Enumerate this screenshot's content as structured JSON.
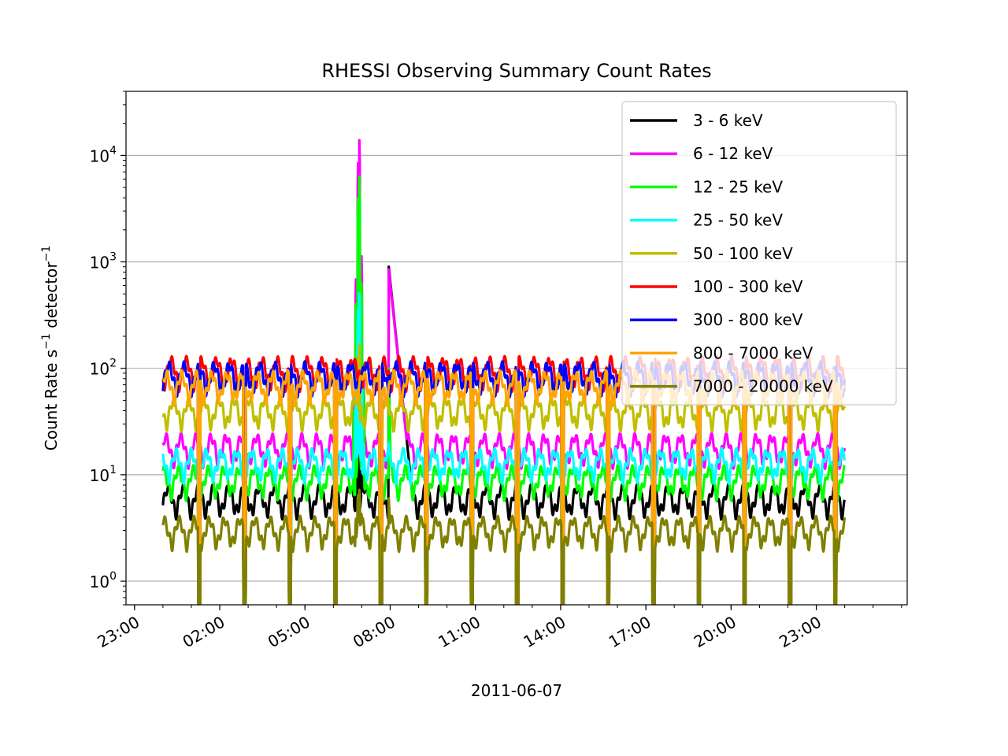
{
  "chart_data": {
    "type": "line",
    "title": "RHESSI Observing Summary Count Rates",
    "xlabel": "2011-06-07",
    "ylabel": "Count Rate s⁻¹ detector⁻¹",
    "ylabel_parts": {
      "pre": "Count Rate s",
      "sup1": "−1",
      "mid": " detector",
      "sup2": "−1"
    },
    "y_scale": "log",
    "ylim": [
      0.6,
      40000
    ],
    "xlim_hours": [
      -1.3,
      26.2
    ],
    "x_ticks": [
      {
        "label": "23:00",
        "hour": -1
      },
      {
        "label": "02:00",
        "hour": 2
      },
      {
        "label": "05:00",
        "hour": 5
      },
      {
        "label": "08:00",
        "hour": 8
      },
      {
        "label": "11:00",
        "hour": 11
      },
      {
        "label": "14:00",
        "hour": 14
      },
      {
        "label": "17:00",
        "hour": 17
      },
      {
        "label": "20:00",
        "hour": 20
      },
      {
        "label": "23:00",
        "hour": 23
      }
    ],
    "y_ticks": [
      {
        "base": "10",
        "exp": "0",
        "value": 1
      },
      {
        "base": "10",
        "exp": "1",
        "value": 10
      },
      {
        "base": "10",
        "exp": "2",
        "value": 100
      },
      {
        "base": "10",
        "exp": "3",
        "value": 1000
      },
      {
        "base": "10",
        "exp": "4",
        "value": 10000
      }
    ],
    "grid": "y-major",
    "legend_position": "top-right",
    "data_range_hours": [
      0.0,
      24.0
    ],
    "orbit_period_hours": 1.6,
    "saa_windows_hours": [
      [
        6.6,
        7.2
      ],
      [
        7.9,
        8.0
      ]
    ],
    "series": [
      {
        "name": "3 - 6 keV",
        "color": "#000000",
        "base": 6,
        "flare1": {
          "start_hour": 6.6,
          "peak": 150,
          "end_hour": 7.2
        },
        "flare2": {
          "start_hour": 7.95,
          "peak": 900,
          "end_hour": 9.1
        }
      },
      {
        "name": "6 - 12 keV",
        "color": "#ff00ff",
        "base": 18,
        "flare1": {
          "start_hour": 6.6,
          "peak": 23000,
          "end_hour": 7.2
        },
        "flare2": {
          "start_hour": 7.95,
          "peak": 850,
          "end_hour": 9.1
        }
      },
      {
        "name": "12 - 25 keV",
        "color": "#00ff00",
        "base": 9,
        "flare1": {
          "start_hour": 6.6,
          "peak": 10000,
          "end_hour": 7.2
        },
        "flare2": {
          "start_hour": 7.95,
          "peak": 100,
          "end_hour": 8.1
        }
      },
      {
        "name": "25 - 50 keV",
        "color": "#00ffff",
        "base": 13,
        "flare1": {
          "start_hour": 6.6,
          "peak": 700,
          "end_hour": 7.2
        },
        "flare2": {
          "start_hour": 7.95,
          "peak": 20,
          "end_hour": 8.1
        }
      },
      {
        "name": "50 - 100 keV",
        "color": "#bfbf00",
        "base": 40,
        "flare1": {
          "start_hour": 6.6,
          "peak": 220,
          "end_hour": 7.2
        },
        "flare2": {
          "start_hour": 7.95,
          "peak": 45,
          "end_hour": 8.1
        }
      },
      {
        "name": "100 - 300 keV",
        "color": "#ff0000",
        "base": 95,
        "flare1": {
          "start_hour": 6.6,
          "peak": 120,
          "end_hour": 7.2
        },
        "flare2": {
          "start_hour": 7.95,
          "peak": 95,
          "end_hour": 8.1
        }
      },
      {
        "name": "300 - 800 keV",
        "color": "#0000ff",
        "base": 85,
        "flare1": {
          "start_hour": 6.6,
          "peak": 90,
          "end_hour": 7.2
        },
        "flare2": {
          "start_hour": 7.95,
          "peak": 85,
          "end_hour": 8.1
        }
      },
      {
        "name": "800 - 7000 keV",
        "color": "#ffa500",
        "base": 70,
        "flare1": {
          "start_hour": 6.6,
          "peak": 75,
          "end_hour": 7.2
        },
        "flare2": {
          "start_hour": 7.95,
          "peak": 70,
          "end_hour": 8.1
        }
      },
      {
        "name": "7000 - 20000 keV",
        "color": "#808000",
        "base": 3,
        "flare1": {
          "start_hour": 6.6,
          "peak": 8,
          "end_hour": 7.2
        },
        "flare2": {
          "start_hour": 7.95,
          "peak": 6,
          "end_hour": 8.1
        }
      }
    ]
  }
}
